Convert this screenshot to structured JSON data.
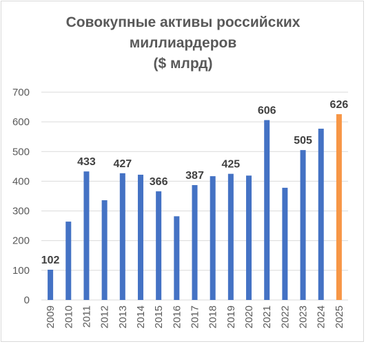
{
  "chart_data": {
    "type": "bar",
    "title_lines": [
      "Совокупные активы российских",
      "миллиардеров",
      "($ млрд)"
    ],
    "categories": [
      "2009",
      "2010",
      "2011",
      "2012",
      "2013",
      "2014",
      "2015",
      "2016",
      "2017",
      "2018",
      "2019",
      "2020",
      "2021",
      "2022",
      "2023",
      "2024",
      "2025"
    ],
    "values": [
      102,
      264,
      433,
      336,
      427,
      422,
      366,
      282,
      387,
      417,
      425,
      419,
      606,
      378,
      505,
      577,
      626
    ],
    "data_labels": [
      "102",
      "",
      "433",
      "",
      "427",
      "",
      "366",
      "",
      "387",
      "",
      "425",
      "",
      "606",
      "",
      "505",
      "",
      "626"
    ],
    "yticks": [
      "0",
      "100",
      "200",
      "300",
      "400",
      "500",
      "600",
      "700"
    ],
    "ylim": [
      0,
      700
    ],
    "grid": true,
    "colors": {
      "default": "#4472c4",
      "highlight": "#f79646",
      "grid": "#d9d9d9"
    },
    "highlight_index": 16
  }
}
